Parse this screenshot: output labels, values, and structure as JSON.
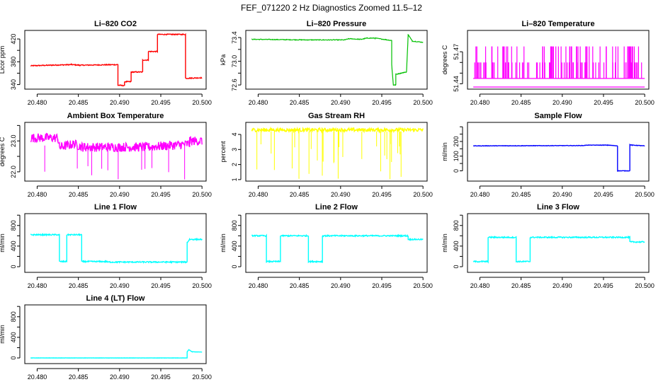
{
  "page": {
    "title": "FEF_071220  2 Hz Diagnostics Zoomed 11.5–12"
  },
  "x_axis": {
    "ticks": [
      20.48,
      20.485,
      20.49,
      20.495,
      20.5
    ],
    "tick_labels": [
      "20.480",
      "20.485",
      "20.490",
      "20.495",
      "20.500"
    ],
    "range": [
      20.4785,
      20.5005
    ]
  },
  "chart_data": [
    {
      "type": "line",
      "title": "Li–820 CO2",
      "ylabel": "Licor ppm",
      "color": "#ff0000",
      "ylim": [
        332,
        435
      ],
      "yticks": [
        340,
        360,
        380,
        400,
        420
      ],
      "ytick_labels": [
        "340",
        "",
        "380",
        "",
        "420"
      ],
      "noise": 0.8,
      "x": [
        20.4792,
        20.4842,
        20.4852,
        20.4898,
        20.4898,
        20.4906,
        20.4906,
        20.4914,
        20.4914,
        20.4928,
        20.4928,
        20.4935,
        20.4935,
        20.4946,
        20.4946,
        20.4964,
        20.498,
        20.498,
        20.5
      ],
      "y": [
        373,
        375,
        374,
        375,
        339,
        338,
        345,
        345,
        362,
        362,
        383,
        383,
        398,
        398,
        428,
        428,
        428,
        351,
        352
      ]
    },
    {
      "type": "line",
      "title": "Li–820 Pressure",
      "ylabel": "kPa",
      "color": "#00c000",
      "ylim": [
        72.53,
        73.52
      ],
      "yticks": [
        72.6,
        72.8,
        73.0,
        73.2,
        73.4
      ],
      "ytick_labels": [
        "72.6",
        "",
        "73.0",
        "",
        "73.4"
      ],
      "noise": 0.006,
      "x": [
        20.4792,
        20.486,
        20.4905,
        20.491,
        20.4925,
        20.4932,
        20.4942,
        20.4962,
        20.4962,
        20.4964,
        20.4967,
        20.4967,
        20.498,
        20.4982,
        20.4987,
        20.5
      ],
      "y": [
        73.37,
        73.36,
        73.36,
        73.38,
        73.37,
        73.39,
        73.39,
        73.35,
        72.95,
        72.6,
        72.6,
        72.78,
        72.82,
        73.45,
        73.34,
        73.32
      ]
    },
    {
      "type": "line",
      "title": "Li–820 Temperature",
      "ylabel": "degrees C",
      "color": "#ff00ff",
      "ylim": [
        51.435,
        51.49
      ],
      "yticks": [
        51.44,
        51.45,
        51.46,
        51.47
      ],
      "ytick_labels": [
        "51.44",
        "",
        "",
        "51.47"
      ],
      "noise": 0,
      "x": [
        20.4792,
        20.5
      ],
      "y": [
        51.445,
        51.445
      ]
    },
    {
      "type": "line",
      "title": "Ambient Box Temperature",
      "ylabel": "degrees C",
      "color": "#ff00ff",
      "ylim": [
        21.7,
        23.6
      ],
      "yticks": [
        22.0,
        22.5,
        23.0,
        23.5
      ],
      "ytick_labels": [
        "22.0",
        "",
        "23.0",
        ""
      ],
      "noise": 0.15,
      "x": [
        20.4792,
        20.4825,
        20.4827,
        20.4845,
        20.4855,
        20.4858,
        20.4898,
        20.4935,
        20.4985,
        20.4985,
        20.5
      ],
      "y": [
        23.1,
        23.1,
        22.8,
        22.9,
        22.8,
        22.8,
        22.8,
        22.8,
        22.9,
        23.0,
        23.0
      ]
    },
    {
      "type": "line",
      "title": "Gas Stream RH",
      "ylabel": "percent",
      "color": "#ffff00",
      "ylim": [
        0.9,
        4.8
      ],
      "yticks": [
        1,
        2,
        3,
        4
      ],
      "ytick_labels": [
        "1",
        "2",
        "3",
        "4"
      ],
      "noise": 0.12,
      "x": [
        20.4792,
        20.5
      ],
      "y": [
        4.3,
        4.3
      ]
    },
    {
      "type": "line",
      "title": "Sample Flow",
      "ylabel": "ml/min",
      "color": "#0000ff",
      "ylim": [
        -70,
        330
      ],
      "yticks": [
        0,
        50,
        100,
        150,
        200,
        250,
        300
      ],
      "ytick_labels": [
        "0",
        "",
        "100",
        "",
        "200",
        "",
        ""
      ],
      "noise": 1.5,
      "x": [
        20.4792,
        20.4925,
        20.493,
        20.4955,
        20.4967,
        20.4967,
        20.4982,
        20.4982,
        20.4985,
        20.5
      ],
      "y": [
        170,
        172,
        175,
        175,
        170,
        0,
        0,
        178,
        175,
        170
      ]
    },
    {
      "type": "line",
      "title": "Line 1 Flow",
      "ylabel": "ml/min",
      "color": "#00ffff",
      "ylim": [
        -110,
        1030
      ],
      "yticks": [
        0,
        200,
        400,
        600,
        800,
        1000
      ],
      "ytick_labels": [
        "0",
        "",
        "400",
        "",
        "800",
        ""
      ],
      "noise": 12,
      "x": [
        20.4792,
        20.4827,
        20.4827,
        20.4836,
        20.4836,
        20.4854,
        20.4854,
        20.4885,
        20.4885,
        20.4982,
        20.4982,
        20.4985,
        20.5
      ],
      "y": [
        620,
        620,
        100,
        100,
        620,
        620,
        100,
        100,
        90,
        90,
        470,
        530,
        530
      ]
    },
    {
      "type": "line",
      "title": "Line 2 Flow",
      "ylabel": "ml/min",
      "color": "#00ffff",
      "ylim": [
        -110,
        1030
      ],
      "yticks": [
        0,
        200,
        400,
        600,
        800,
        1000
      ],
      "ytick_labels": [
        "0",
        "",
        "400",
        "",
        "800",
        ""
      ],
      "noise": 12,
      "x": [
        20.4792,
        20.481,
        20.481,
        20.4827,
        20.4827,
        20.4861,
        20.4861,
        20.4878,
        20.4878,
        20.4982,
        20.4982,
        20.5
      ],
      "y": [
        600,
        600,
        100,
        100,
        600,
        600,
        100,
        100,
        600,
        600,
        530,
        530
      ]
    },
    {
      "type": "line",
      "title": "Line 3 Flow",
      "ylabel": "ml/min",
      "color": "#00ffff",
      "ylim": [
        -110,
        1030
      ],
      "yticks": [
        0,
        200,
        400,
        600,
        800,
        1000
      ],
      "ytick_labels": [
        "0",
        "",
        "400",
        "",
        "800",
        ""
      ],
      "noise": 12,
      "x": [
        20.4792,
        20.481,
        20.481,
        20.4844,
        20.4844,
        20.4861,
        20.4861,
        20.4982,
        20.4982,
        20.5
      ],
      "y": [
        100,
        100,
        570,
        570,
        100,
        100,
        570,
        570,
        480,
        480
      ]
    },
    {
      "type": "line",
      "title": "Line 4 (LT) Flow",
      "ylabel": "ml/min",
      "color": "#00ffff",
      "ylim": [
        -110,
        1030
      ],
      "yticks": [
        0,
        200,
        400,
        600,
        800,
        1000
      ],
      "ytick_labels": [
        "0",
        "",
        "400",
        "",
        "800",
        ""
      ],
      "noise": 2,
      "x": [
        20.4792,
        20.4982,
        20.4982,
        20.4984,
        20.4988,
        20.5
      ],
      "y": [
        0,
        0,
        120,
        160,
        120,
        115
      ]
    }
  ]
}
